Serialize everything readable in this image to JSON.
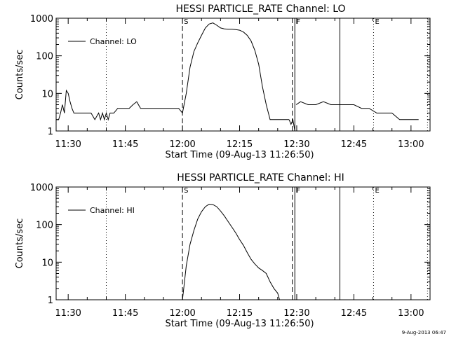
{
  "footer_stamp": "9-Aug-2013 06:47",
  "chart_data": [
    {
      "type": "line",
      "title": "HESSI PARTICLE_RATE Channel: LO",
      "xlabel": "Start Time (09-Aug-13 11:26:50)",
      "ylabel": "Counts/sec",
      "y_scale": "log",
      "ylim": [
        1,
        1000
      ],
      "xlim": [
        "11:26:50",
        "13:05:00"
      ],
      "x_ticks": [
        "11:30",
        "11:45",
        "12:00",
        "12:15",
        "12:30",
        "12:45",
        "13:00"
      ],
      "y_ticks": [
        "1",
        "10",
        "100",
        "1000"
      ],
      "legend": {
        "position": "top-left",
        "entries": [
          "Channel: LO"
        ]
      },
      "markers": [
        {
          "time": "11:40:00",
          "style": "dotted",
          "label": ""
        },
        {
          "time": "12:00:00",
          "style": "dashed",
          "label": "S"
        },
        {
          "time": "12:28:50",
          "style": "dashed",
          "label": ""
        },
        {
          "time": "12:29:30",
          "style": "solid",
          "label": "F"
        },
        {
          "time": "12:41:20",
          "style": "solid",
          "label": ""
        },
        {
          "time": "12:50:10",
          "style": "dotted",
          "label": "E"
        },
        {
          "time": "13:04:20",
          "style": "dotted",
          "label": ""
        }
      ],
      "series": [
        {
          "name": "Channel: LO",
          "segments": [
            {
              "x": [
                "11:26:50",
                "11:27:30",
                "11:28:00",
                "11:28:30",
                "11:29:00",
                "11:29:30",
                "11:30:00",
                "11:30:30",
                "11:31:00",
                "11:31:30",
                "11:32:00",
                "11:32:30",
                "11:33:00",
                "11:34:00",
                "11:35:00",
                "11:36:00",
                "11:37:00",
                "11:38:00",
                "11:38:30",
                "11:39:00",
                "11:39:30",
                "11:40:00",
                "11:40:30",
                "11:41:00",
                "11:42:00",
                "11:43:00",
                "11:44:00",
                "11:45:00",
                "11:46:00",
                "11:47:00",
                "11:48:00",
                "11:49:00",
                "11:50:00",
                "11:51:00",
                "11:52:00",
                "11:53:00",
                "11:54:00",
                "11:55:00",
                "11:56:00",
                "11:57:00",
                "11:58:00",
                "11:59:00",
                "12:00:00"
              ],
              "y": [
                2,
                2,
                3,
                5,
                3,
                12,
                10,
                6,
                4,
                3,
                3,
                3,
                3,
                3,
                3,
                3,
                2,
                3,
                2,
                3,
                2,
                3,
                2,
                3,
                3,
                4,
                4,
                4,
                4,
                5,
                6,
                4,
                4,
                4,
                4,
                4,
                4,
                4,
                4,
                4,
                4,
                4,
                3
              ]
            },
            {
              "x": [
                "12:00:00",
                "12:01:00",
                "12:02:00",
                "12:03:00",
                "12:04:00",
                "12:05:00",
                "12:06:00",
                "12:07:00",
                "12:08:00",
                "12:09:00",
                "12:10:00",
                "12:11:00",
                "12:12:00",
                "12:13:00",
                "12:14:00",
                "12:15:00",
                "12:16:00",
                "12:17:00",
                "12:18:00",
                "12:19:00",
                "12:20:00",
                "12:21:00",
                "12:22:00",
                "12:23:00",
                "12:24:00",
                "12:25:00",
                "12:26:00",
                "12:27:00",
                "12:28:00"
              ],
              "y": [
                3,
                10,
                50,
                130,
                220,
                350,
                550,
                700,
                750,
                650,
                550,
                520,
                510,
                510,
                500,
                480,
                430,
                350,
                250,
                140,
                60,
                15,
                5,
                2,
                2,
                2,
                2,
                2,
                2
              ]
            },
            {
              "x": [
                "12:28:00",
                "12:28:30",
                "12:29:00",
                "12:29:30"
              ],
              "y": [
                2,
                1.5,
                2,
                1
              ]
            },
            {
              "x": [
                "12:29:50",
                "12:31:00",
                "12:33:00",
                "12:35:00",
                "12:37:00",
                "12:39:00",
                "12:41:00",
                "12:43:00",
                "12:45:00",
                "12:47:00",
                "12:49:00",
                "12:51:00",
                "12:53:00",
                "12:55:00",
                "12:57:00",
                "12:59:00",
                "13:01:00",
                "13:02:00"
              ],
              "y": [
                5,
                6,
                5,
                5,
                6,
                5,
                5,
                5,
                5,
                4,
                4,
                3,
                3,
                3,
                2,
                2,
                2,
                2
              ]
            }
          ]
        }
      ]
    },
    {
      "type": "line",
      "title": "HESSI PARTICLE_RATE Channel: HI",
      "xlabel": "Start Time (09-Aug-13 11:26:50)",
      "ylabel": "Counts/sec",
      "y_scale": "log",
      "ylim": [
        1,
        1000
      ],
      "xlim": [
        "11:26:50",
        "13:05:00"
      ],
      "x_ticks": [
        "11:30",
        "11:45",
        "12:00",
        "12:15",
        "12:30",
        "12:45",
        "13:00"
      ],
      "y_ticks": [
        "1",
        "10",
        "100",
        "1000"
      ],
      "legend": {
        "position": "top-left",
        "entries": [
          "Channel: HI"
        ]
      },
      "markers": [
        {
          "time": "11:40:00",
          "style": "dotted",
          "label": ""
        },
        {
          "time": "12:00:00",
          "style": "dashed",
          "label": "S"
        },
        {
          "time": "12:28:50",
          "style": "dashed",
          "label": ""
        },
        {
          "time": "12:29:30",
          "style": "solid",
          "label": "F"
        },
        {
          "time": "12:41:20",
          "style": "solid",
          "label": ""
        },
        {
          "time": "12:50:10",
          "style": "dotted",
          "label": "E"
        },
        {
          "time": "13:04:20",
          "style": "dotted",
          "label": ""
        }
      ],
      "series": [
        {
          "name": "Channel: HI",
          "segments": [
            {
              "x": [
                "12:00:00",
                "12:01:00",
                "12:02:00",
                "12:03:00",
                "12:04:00",
                "12:05:00",
                "12:06:00",
                "12:07:00",
                "12:08:00",
                "12:09:00",
                "12:10:00",
                "12:11:00",
                "12:12:00",
                "12:13:00",
                "12:14:00",
                "12:15:00",
                "12:16:00",
                "12:17:00",
                "12:18:00",
                "12:19:00",
                "12:20:00",
                "12:21:00",
                "12:22:00",
                "12:23:00",
                "12:24:00",
                "12:25:00",
                "12:25:30"
              ],
              "y": [
                1,
                8,
                30,
                70,
                140,
                220,
                300,
                350,
                340,
                300,
                230,
                170,
                120,
                85,
                60,
                40,
                28,
                18,
                12,
                9,
                7,
                6,
                5,
                3,
                2,
                1.5,
                1
              ]
            }
          ]
        }
      ]
    }
  ]
}
